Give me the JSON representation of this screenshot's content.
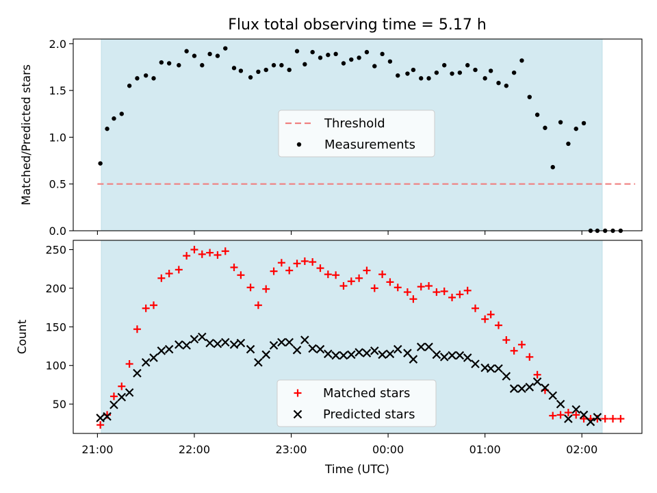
{
  "chart_data": {
    "title": "Flux total observing time = 5.17 h",
    "xlabel": "Time (UTC)",
    "x_tick_labels": [
      "21:00",
      "22:00",
      "23:00",
      "00:00",
      "01:00",
      "02:00"
    ],
    "x_tick_hours": [
      0,
      1,
      2,
      3,
      4,
      5
    ],
    "x_range_hours_since_2100": [
      -0.25,
      5.62
    ],
    "observing_window_hours_since_2100": [
      0.04,
      5.21
    ],
    "shade_color": "#d4eaf1",
    "panels": [
      {
        "type": "scatter",
        "ylabel": "Matched/Predicted stars",
        "ylim": [
          0,
          2.05
        ],
        "y_ticks": [
          0.0,
          0.5,
          1.0,
          1.5,
          2.0
        ],
        "y_tick_labels": [
          "0.0",
          "0.5",
          "1.0",
          "1.5",
          "2.0"
        ],
        "legend_position": "center",
        "threshold": {
          "name": "Threshold",
          "value": 0.5,
          "x_range": [
            0,
            5.55
          ],
          "color": "#f08080",
          "style": "dashed"
        },
        "series": [
          {
            "name": "Measurements",
            "marker": "dot",
            "color": "#000000",
            "x": [
              0.03,
              0.1,
              0.17,
              0.25,
              0.33,
              0.41,
              0.5,
              0.58,
              0.66,
              0.74,
              0.84,
              0.92,
              1.0,
              1.08,
              1.16,
              1.24,
              1.32,
              1.41,
              1.48,
              1.58,
              1.66,
              1.74,
              1.82,
              1.9,
              1.98,
              2.06,
              2.14,
              2.22,
              2.3,
              2.38,
              2.46,
              2.54,
              2.62,
              2.7,
              2.78,
              2.86,
              2.94,
              3.02,
              3.1,
              3.2,
              3.26,
              3.34,
              3.42,
              3.5,
              3.58,
              3.66,
              3.74,
              3.82,
              3.9,
              4.0,
              4.06,
              4.14,
              4.22,
              4.3,
              4.38,
              4.46,
              4.54,
              4.62,
              4.7,
              4.78,
              4.86,
              4.94,
              5.02,
              5.09,
              5.16,
              5.24,
              5.32,
              5.4
            ],
            "y": [
              0.72,
              1.09,
              1.2,
              1.25,
              1.55,
              1.63,
              1.66,
              1.63,
              1.8,
              1.79,
              1.77,
              1.92,
              1.87,
              1.77,
              1.89,
              1.87,
              1.95,
              1.74,
              1.71,
              1.64,
              1.7,
              1.72,
              1.77,
              1.77,
              1.72,
              1.92,
              1.78,
              1.91,
              1.85,
              1.88,
              1.89,
              1.79,
              1.83,
              1.85,
              1.91,
              1.76,
              1.89,
              1.81,
              1.66,
              1.68,
              1.72,
              1.63,
              1.63,
              1.69,
              1.77,
              1.68,
              1.69,
              1.77,
              1.72,
              1.63,
              1.71,
              1.58,
              1.55,
              1.69,
              1.82,
              1.43,
              1.24,
              1.1,
              0.68,
              1.16,
              0.93,
              1.09,
              1.15,
              0.0,
              0.0,
              0.0,
              0.0,
              0.0
            ]
          }
        ]
      },
      {
        "type": "scatter",
        "ylabel": "Count",
        "ylim": [
          12,
          262
        ],
        "y_ticks": [
          50,
          100,
          150,
          200,
          250
        ],
        "y_tick_labels": [
          "50",
          "100",
          "150",
          "200",
          "250"
        ],
        "legend_position": "lower center",
        "series": [
          {
            "name": "Matched stars",
            "marker": "plus",
            "color": "#ff0000",
            "x": [
              0.03,
              0.1,
              0.17,
              0.25,
              0.33,
              0.41,
              0.5,
              0.58,
              0.66,
              0.74,
              0.84,
              0.92,
              1.0,
              1.08,
              1.16,
              1.24,
              1.32,
              1.41,
              1.48,
              1.58,
              1.66,
              1.74,
              1.82,
              1.9,
              1.98,
              2.06,
              2.14,
              2.22,
              2.3,
              2.38,
              2.46,
              2.54,
              2.62,
              2.7,
              2.78,
              2.86,
              2.94,
              3.02,
              3.1,
              3.2,
              3.26,
              3.34,
              3.42,
              3.5,
              3.58,
              3.66,
              3.74,
              3.82,
              3.9,
              4.0,
              4.06,
              4.14,
              4.22,
              4.3,
              4.38,
              4.46,
              4.54,
              4.62,
              4.7,
              4.78,
              4.86,
              4.94,
              5.02,
              5.09,
              5.16,
              5.24,
              5.32,
              5.4
            ],
            "y": [
              23,
              36,
              60,
              73,
              102,
              147,
              174,
              178,
              213,
              219,
              224,
              242,
              250,
              244,
              246,
              243,
              248,
              227,
              217,
              201,
              178,
              199,
              222,
              233,
              223,
              232,
              235,
              234,
              226,
              218,
              217,
              203,
              209,
              213,
              223,
              200,
              218,
              208,
              201,
              195,
              186,
              202,
              203,
              195,
              196,
              188,
              192,
              197,
              174,
              160,
              166,
              152,
              133,
              119,
              127,
              111,
              88,
              68,
              35,
              36,
              39,
              36,
              31,
              31,
              31,
              31,
              31,
              31
            ]
          },
          {
            "name": "Predicted stars",
            "marker": "x",
            "color": "#000000",
            "x": [
              0.03,
              0.1,
              0.17,
              0.25,
              0.33,
              0.41,
              0.5,
              0.58,
              0.66,
              0.74,
              0.84,
              0.92,
              1.0,
              1.08,
              1.16,
              1.24,
              1.32,
              1.41,
              1.48,
              1.58,
              1.66,
              1.74,
              1.82,
              1.9,
              1.98,
              2.06,
              2.14,
              2.22,
              2.3,
              2.38,
              2.46,
              2.54,
              2.62,
              2.7,
              2.78,
              2.86,
              2.94,
              3.02,
              3.1,
              3.2,
              3.26,
              3.34,
              3.42,
              3.5,
              3.58,
              3.66,
              3.74,
              3.82,
              3.9,
              4.0,
              4.06,
              4.14,
              4.22,
              4.3,
              4.38,
              4.46,
              4.54,
              4.62,
              4.7,
              4.78,
              4.86,
              4.94,
              5.02,
              5.09,
              5.16
            ],
            "y": [
              32,
              34,
              49,
              59,
              65,
              90,
              104,
              110,
              119,
              121,
              127,
              126,
              134,
              137,
              129,
              128,
              130,
              127,
              129,
              121,
              104,
              114,
              126,
              130,
              130,
              120,
              133,
              122,
              121,
              115,
              113,
              113,
              114,
              117,
              116,
              119,
              114,
              115,
              121,
              116,
              108,
              124,
              124,
              114,
              111,
              113,
              113,
              110,
              102,
              97,
              96,
              96,
              86,
              70,
              70,
              72,
              79,
              71,
              61,
              50,
              31,
              43,
              36,
              27,
              33
            ]
          }
        ]
      }
    ]
  }
}
